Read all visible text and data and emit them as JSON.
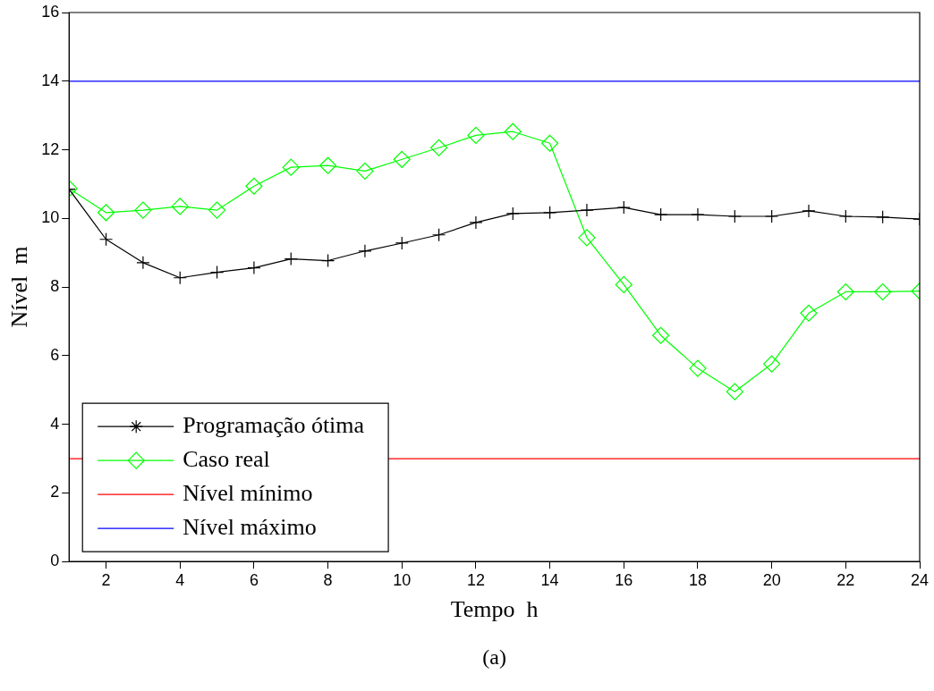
{
  "chart_data": {
    "type": "line",
    "xlabel": "Tempo  h",
    "ylabel": "Nível  m",
    "x": [
      1,
      2,
      3,
      4,
      5,
      6,
      7,
      8,
      9,
      10,
      11,
      12,
      13,
      14,
      15,
      16,
      17,
      18,
      19,
      20,
      21,
      22,
      23,
      24
    ],
    "series": [
      {
        "name": "Programação ótima",
        "color": "#000000",
        "marker": "cross",
        "values": [
          10.85,
          9.39,
          8.71,
          8.27,
          8.43,
          8.56,
          8.82,
          8.77,
          9.05,
          9.28,
          9.52,
          9.88,
          10.14,
          10.17,
          10.24,
          10.32,
          10.11,
          10.11,
          10.06,
          10.06,
          10.22,
          10.06,
          10.04,
          9.98
        ]
      },
      {
        "name": "Caso real",
        "color": "#00ff00",
        "marker": "diamond",
        "values": [
          10.87,
          10.17,
          10.24,
          10.35,
          10.24,
          10.94,
          11.49,
          11.54,
          11.38,
          11.72,
          12.06,
          12.42,
          12.53,
          12.19,
          9.44,
          8.07,
          6.59,
          5.63,
          4.95,
          5.76,
          7.24,
          7.86,
          7.86,
          7.88
        ]
      }
    ],
    "ref_lines": [
      {
        "axis": "y",
        "value": 3,
        "label": "Nível mínimo",
        "color": "#ff0000"
      },
      {
        "axis": "y",
        "value": 14,
        "label": "Nível máximo",
        "color": "#0000ff"
      }
    ],
    "xlim": [
      1,
      24
    ],
    "xticks": [
      2,
      4,
      6,
      8,
      10,
      12,
      14,
      16,
      18,
      20,
      22,
      24
    ],
    "ylim": [
      0,
      16
    ],
    "yticks": [
      0,
      2,
      4,
      6,
      8,
      10,
      12,
      14,
      16
    ],
    "grid": false,
    "legend": "bottom left",
    "line_style": "solid",
    "annotations": [
      "(a)"
    ]
  }
}
